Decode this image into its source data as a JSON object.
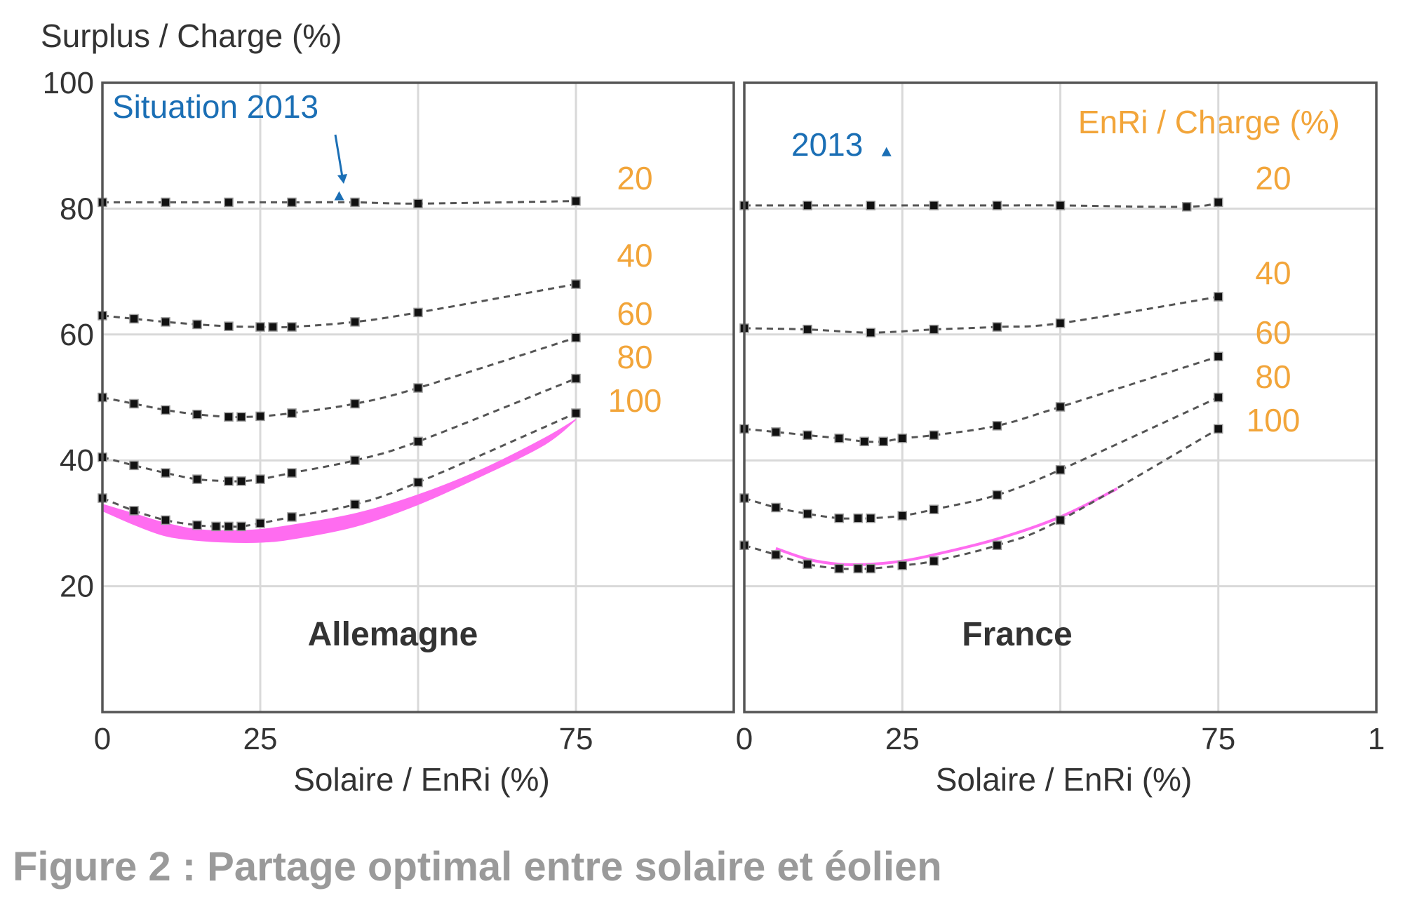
{
  "y_axis_title": "Surplus / Charge (%)",
  "x_axis_title": "Solaire / EnRi (%)",
  "enri_legend_title": "EnRi / Charge (%)",
  "caption": "Figure 2 : Partage optimal entre solaire et éolien",
  "y_ticks": [
    "100",
    "80",
    "60",
    "40",
    "20"
  ],
  "colors": {
    "curves": "#555555",
    "labels": "#f2a53a",
    "situation": "#1b6fb5",
    "optimum": "#ff6cf0",
    "frame": "#555555",
    "grid": "#d9d9d9"
  },
  "chart_data": [
    {
      "type": "line",
      "title": "Allemagne",
      "xlabel": "Solaire / EnRi (%)",
      "ylabel": "Surplus / Charge (%)",
      "xlim": [
        0,
        100
      ],
      "ylim": [
        0,
        100
      ],
      "x_ticks": [
        "0",
        "25",
        "75"
      ],
      "y_ticks": [
        20,
        40,
        60,
        80,
        100
      ],
      "grid": true,
      "annotation": {
        "label": "Situation 2013",
        "x": 37.5,
        "y": 82
      },
      "series": [
        {
          "name": "20",
          "points": [
            [
              0,
              81
            ],
            [
              10,
              81
            ],
            [
              20,
              81
            ],
            [
              30,
              81
            ],
            [
              40,
              81
            ],
            [
              50,
              80.8
            ],
            [
              75,
              81.2
            ]
          ]
        },
        {
          "name": "40",
          "points": [
            [
              0,
              63
            ],
            [
              5,
              62.5
            ],
            [
              10,
              62
            ],
            [
              15,
              61.6
            ],
            [
              20,
              61.3
            ],
            [
              25,
              61.2
            ],
            [
              27,
              61.2
            ],
            [
              30,
              61.2
            ],
            [
              40,
              62
            ],
            [
              50,
              63.5
            ],
            [
              75,
              68
            ]
          ]
        },
        {
          "name": "60",
          "points": [
            [
              0,
              50
            ],
            [
              5,
              49
            ],
            [
              10,
              48
            ],
            [
              15,
              47.3
            ],
            [
              20,
              46.9
            ],
            [
              22,
              46.9
            ],
            [
              25,
              47
            ],
            [
              30,
              47.5
            ],
            [
              40,
              49
            ],
            [
              50,
              51.5
            ],
            [
              75,
              59.5
            ]
          ]
        },
        {
          "name": "80",
          "points": [
            [
              0,
              40.5
            ],
            [
              5,
              39.2
            ],
            [
              10,
              38
            ],
            [
              15,
              37
            ],
            [
              20,
              36.7
            ],
            [
              22,
              36.7
            ],
            [
              25,
              37
            ],
            [
              30,
              38
            ],
            [
              40,
              40
            ],
            [
              50,
              43
            ],
            [
              75,
              53
            ]
          ]
        },
        {
          "name": "100",
          "points": [
            [
              0,
              34
            ],
            [
              5,
              32
            ],
            [
              10,
              30.5
            ],
            [
              15,
              29.7
            ],
            [
              18,
              29.5
            ],
            [
              20,
              29.5
            ],
            [
              22,
              29.5
            ],
            [
              25,
              30
            ],
            [
              30,
              31
            ],
            [
              40,
              33
            ],
            [
              50,
              36.5
            ],
            [
              75,
              47.5
            ]
          ]
        }
      ],
      "optimum_band": {
        "upper": [
          [
            0,
            33
          ],
          [
            5,
            31.5
          ],
          [
            10,
            30
          ],
          [
            15,
            29
          ],
          [
            20,
            28.8
          ],
          [
            25,
            29
          ],
          [
            30,
            29.7
          ],
          [
            40,
            31.5
          ],
          [
            50,
            34.5
          ],
          [
            60,
            38.5
          ],
          [
            70,
            43.5
          ],
          [
            75,
            46.5
          ]
        ],
        "lower": [
          [
            0,
            32
          ],
          [
            5,
            29.8
          ],
          [
            10,
            28
          ],
          [
            15,
            27.3
          ],
          [
            20,
            27
          ],
          [
            25,
            27
          ],
          [
            30,
            27.5
          ],
          [
            40,
            29.5
          ],
          [
            50,
            33
          ],
          [
            60,
            37.5
          ],
          [
            70,
            42.5
          ],
          [
            75,
            46.5
          ]
        ]
      }
    },
    {
      "type": "line",
      "title": "France",
      "xlabel": "Solaire / EnRi (%)",
      "ylabel": "Surplus / Charge (%)",
      "xlim": [
        0,
        100
      ],
      "ylim": [
        0,
        100
      ],
      "x_ticks": [
        "0",
        "25",
        "75",
        "1"
      ],
      "y_ticks": [
        20,
        40,
        60,
        80,
        100
      ],
      "grid": true,
      "annotation": {
        "label": "2013",
        "x": 22.5,
        "y": 89
      },
      "series": [
        {
          "name": "20",
          "points": [
            [
              0,
              80.5
            ],
            [
              10,
              80.5
            ],
            [
              20,
              80.5
            ],
            [
              30,
              80.5
            ],
            [
              40,
              80.5
            ],
            [
              50,
              80.5
            ],
            [
              70,
              80.3
            ],
            [
              75,
              81
            ]
          ]
        },
        {
          "name": "40",
          "points": [
            [
              0,
              61
            ],
            [
              10,
              60.8
            ],
            [
              20,
              60.3
            ],
            [
              30,
              60.8
            ],
            [
              40,
              61.2
            ],
            [
              50,
              61.8
            ],
            [
              75,
              66
            ]
          ]
        },
        {
          "name": "60",
          "points": [
            [
              0,
              45
            ],
            [
              5,
              44.5
            ],
            [
              10,
              44
            ],
            [
              15,
              43.5
            ],
            [
              19,
              43
            ],
            [
              22,
              43
            ],
            [
              25,
              43.5
            ],
            [
              30,
              44
            ],
            [
              40,
              45.5
            ],
            [
              50,
              48.5
            ],
            [
              75,
              56.5
            ]
          ]
        },
        {
          "name": "80",
          "points": [
            [
              0,
              34
            ],
            [
              5,
              32.5
            ],
            [
              10,
              31.5
            ],
            [
              15,
              30.8
            ],
            [
              18,
              30.8
            ],
            [
              20,
              30.8
            ],
            [
              25,
              31.2
            ],
            [
              30,
              32.2
            ],
            [
              40,
              34.5
            ],
            [
              50,
              38.5
            ],
            [
              75,
              50
            ]
          ]
        },
        {
          "name": "100",
          "points": [
            [
              0,
              26.5
            ],
            [
              5,
              25
            ],
            [
              10,
              23.5
            ],
            [
              15,
              22.8
            ],
            [
              18,
              22.8
            ],
            [
              20,
              22.8
            ],
            [
              25,
              23.3
            ],
            [
              30,
              24
            ],
            [
              40,
              26.5
            ],
            [
              50,
              30.5
            ],
            [
              75,
              45
            ]
          ]
        }
      ],
      "optimum_line": [
        [
          5,
          26
        ],
        [
          10,
          24.3
        ],
        [
          15,
          23.5
        ],
        [
          20,
          23.5
        ],
        [
          25,
          24
        ],
        [
          30,
          25
        ],
        [
          40,
          27.5
        ],
        [
          50,
          31
        ],
        [
          59,
          35.5
        ]
      ]
    }
  ]
}
